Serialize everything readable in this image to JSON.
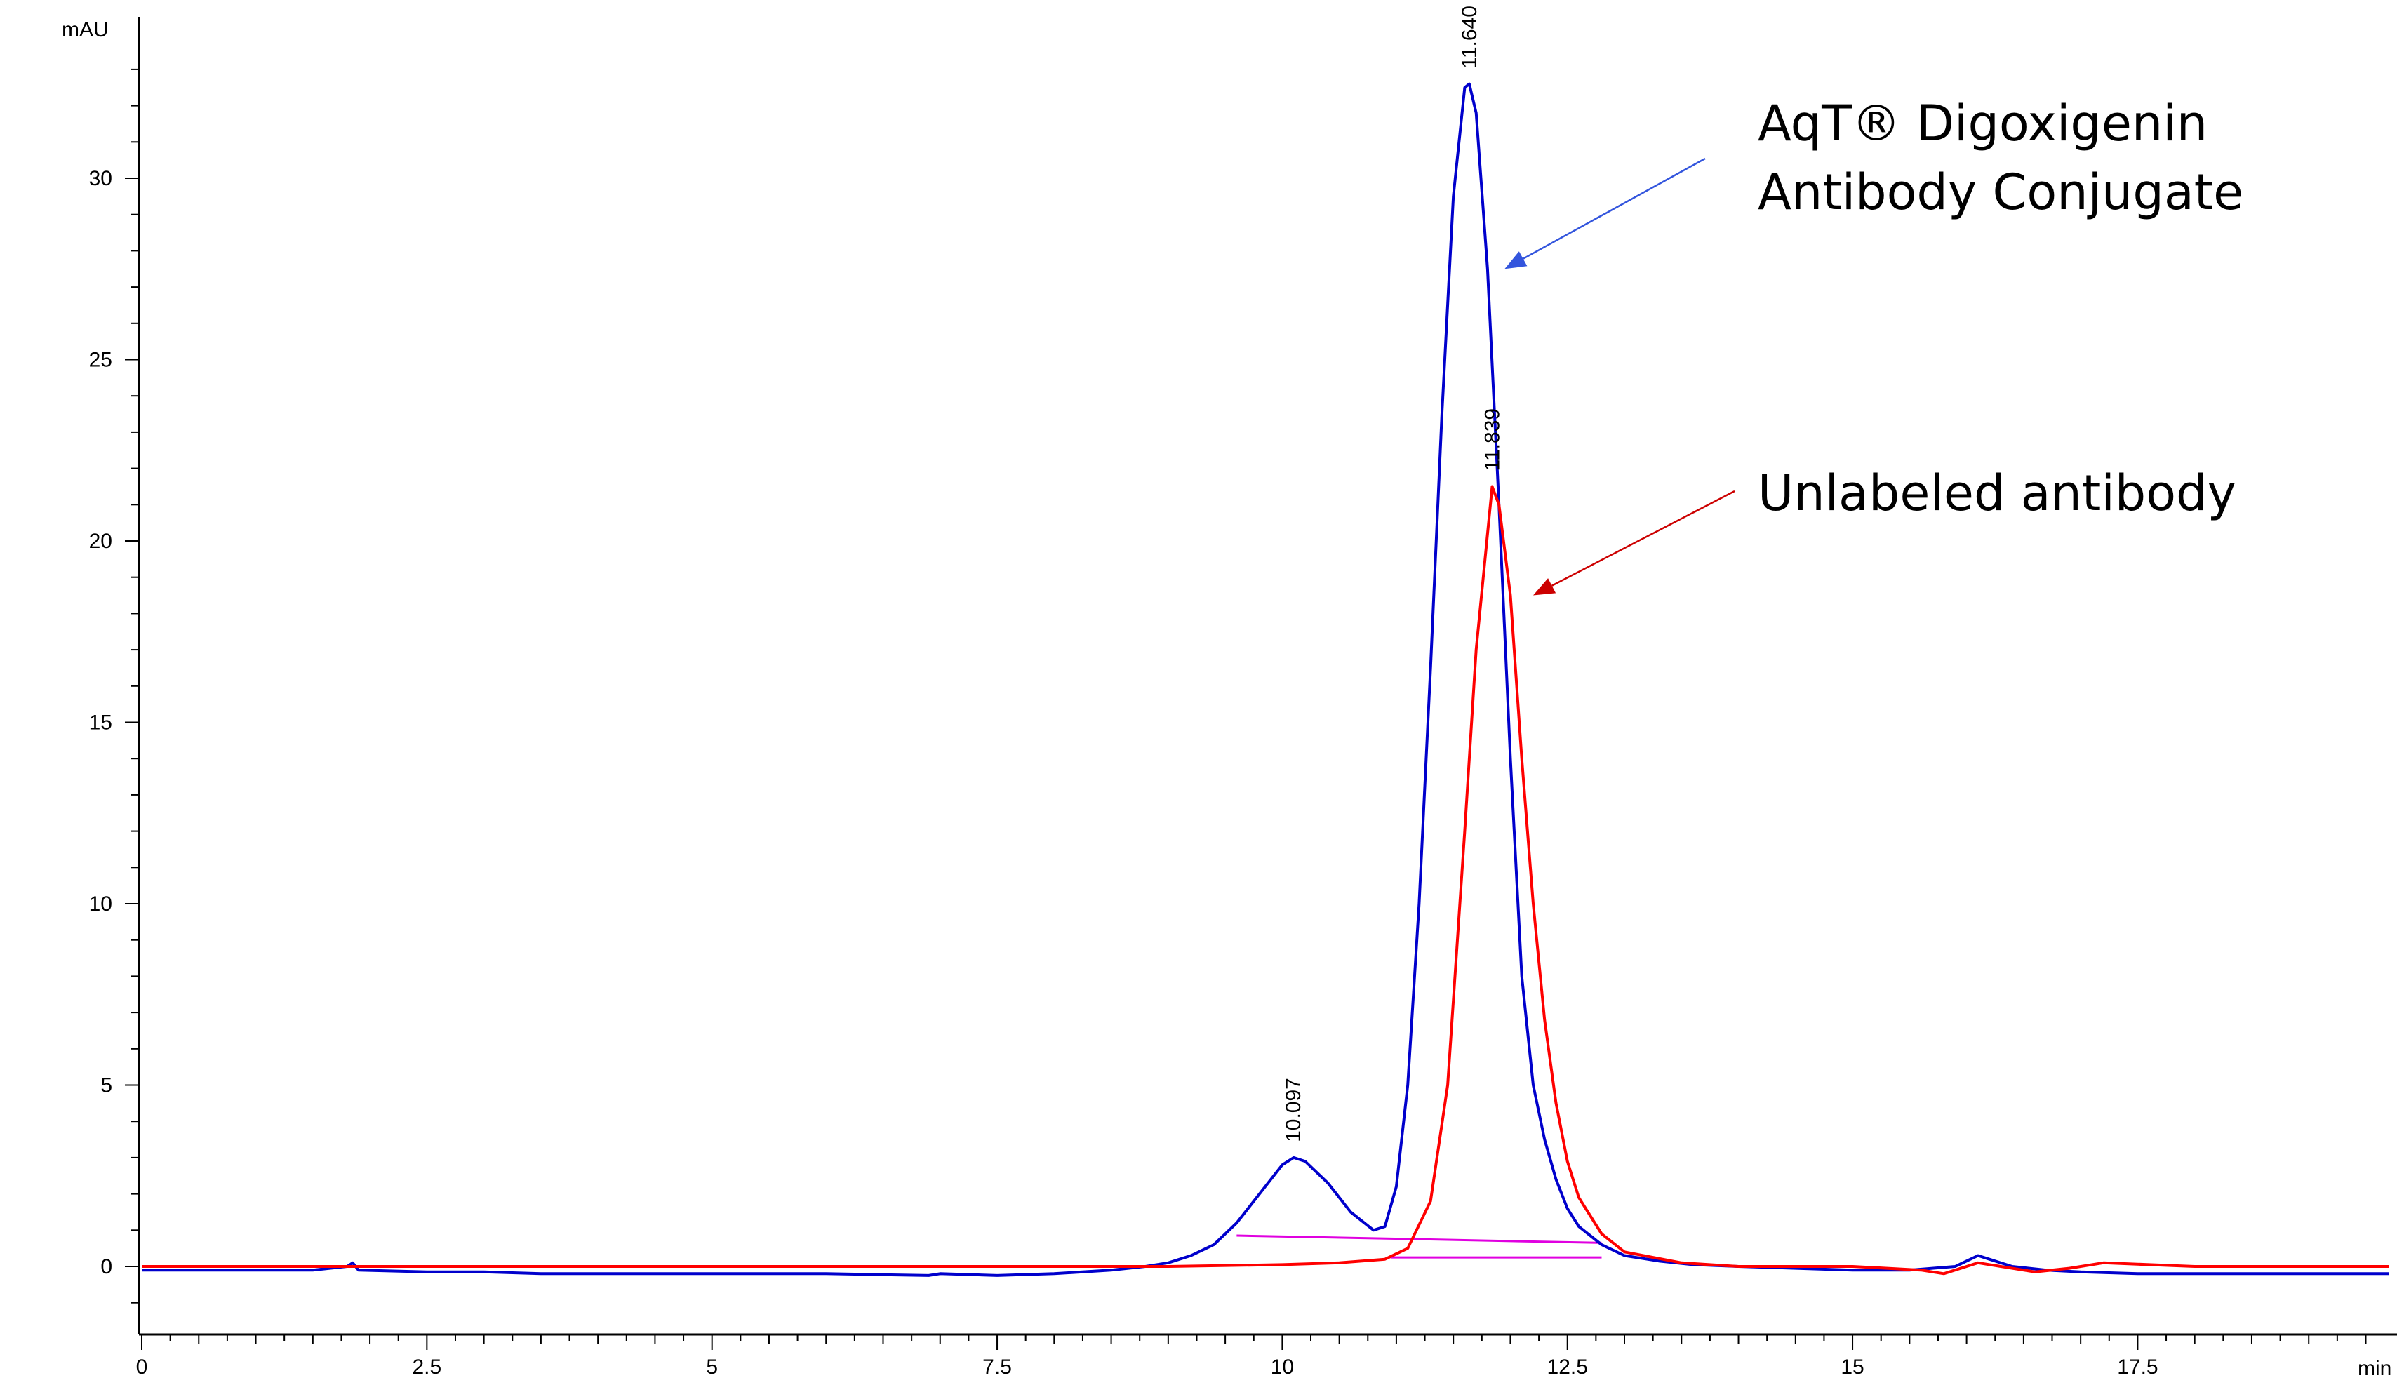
{
  "chart_data": {
    "type": "line",
    "title": "",
    "xlabel": "",
    "ylabel": "",
    "x_unit": "min",
    "y_unit": "mAU",
    "xlim": [
      0,
      19.7
    ],
    "ylim": [
      -2,
      34
    ],
    "x_ticks": [
      {
        "value": 0,
        "label": "0"
      },
      {
        "value": 2.5,
        "label": "2.5"
      },
      {
        "value": 5,
        "label": "5"
      },
      {
        "value": 7.5,
        "label": "7.5"
      },
      {
        "value": 10,
        "label": "10"
      },
      {
        "value": 12.5,
        "label": "12.5"
      },
      {
        "value": 15,
        "label": "15"
      },
      {
        "value": 17.5,
        "label": "17.5"
      }
    ],
    "y_ticks": [
      {
        "value": 0,
        "label": "0"
      },
      {
        "value": 5,
        "label": "5"
      },
      {
        "value": 10,
        "label": "10"
      },
      {
        "value": 15,
        "label": "15"
      },
      {
        "value": 20,
        "label": "20"
      },
      {
        "value": 25,
        "label": "25"
      },
      {
        "value": 30,
        "label": "30"
      }
    ],
    "grid": false,
    "legend": "none",
    "series": [
      {
        "color": "#0000cc",
        "x": [
          0,
          0.5,
          1.0,
          1.5,
          1.8,
          1.85,
          1.9,
          2.5,
          3.0,
          3.5,
          4.0,
          5.0,
          6.0,
          6.9,
          7.0,
          7.5,
          8.0,
          8.5,
          8.8,
          9.0,
          9.2,
          9.4,
          9.6,
          9.8,
          10.0,
          10.1,
          10.2,
          10.4,
          10.6,
          10.8,
          10.9,
          11.0,
          11.1,
          11.2,
          11.3,
          11.4,
          11.5,
          11.6,
          11.64,
          11.7,
          11.8,
          11.9,
          12.0,
          12.1,
          12.2,
          12.3,
          12.4,
          12.5,
          12.6,
          12.8,
          13.0,
          13.3,
          13.6,
          14.0,
          14.5,
          15.0,
          15.5,
          15.9,
          16.1,
          16.2,
          16.4,
          16.7,
          17.0,
          17.5,
          18.0,
          19.0,
          19.7
        ],
        "y": [
          -0.1,
          -0.1,
          -0.1,
          -0.1,
          0.0,
          0.1,
          -0.1,
          -0.15,
          -0.15,
          -0.2,
          -0.2,
          -0.2,
          -0.2,
          -0.25,
          -0.2,
          -0.25,
          -0.2,
          -0.1,
          0.0,
          0.1,
          0.3,
          0.6,
          1.2,
          2.0,
          2.8,
          3.0,
          2.9,
          2.3,
          1.5,
          1.0,
          1.1,
          2.2,
          5.0,
          10.0,
          16.5,
          23.5,
          29.5,
          32.5,
          32.6,
          31.8,
          27.5,
          21.0,
          14.0,
          8.0,
          5.0,
          3.5,
          2.4,
          1.6,
          1.1,
          0.6,
          0.3,
          0.15,
          0.05,
          0.0,
          -0.05,
          -0.1,
          -0.1,
          0.0,
          0.3,
          0.2,
          0.0,
          -0.1,
          -0.15,
          -0.2,
          -0.2,
          -0.2,
          -0.2
        ]
      },
      {
        "color": "#ff0000",
        "x": [
          0,
          2.0,
          5.0,
          8.0,
          9.0,
          10.0,
          10.5,
          10.9,
          11.1,
          11.3,
          11.45,
          11.6,
          11.7,
          11.84,
          11.9,
          12.0,
          12.1,
          12.2,
          12.3,
          12.4,
          12.5,
          12.6,
          12.8,
          13.0,
          13.5,
          14.0,
          15.0,
          15.6,
          15.8,
          16.0,
          16.1,
          16.3,
          16.6,
          16.9,
          17.2,
          18.0,
          19.0,
          19.7
        ],
        "y": [
          0.0,
          0.0,
          0.0,
          0.0,
          0.0,
          0.05,
          0.1,
          0.2,
          0.5,
          1.8,
          5.0,
          12.0,
          17.0,
          21.5,
          21.0,
          18.5,
          14.0,
          10.0,
          6.8,
          4.5,
          2.9,
          1.9,
          0.9,
          0.4,
          0.1,
          0.0,
          0.0,
          -0.1,
          -0.2,
          0.0,
          0.1,
          0.0,
          -0.15,
          -0.05,
          0.1,
          0.0,
          0.0,
          0.0
        ]
      }
    ],
    "baselines": [
      {
        "color": "#e000e0",
        "x": [
          9.6,
          12.8
        ],
        "y": [
          0.85,
          0.65
        ]
      },
      {
        "color": "#e000e0",
        "x": [
          10.95,
          12.8
        ],
        "y": [
          0.25,
          0.25
        ]
      }
    ],
    "peak_labels": [
      {
        "x": 10.097,
        "y": 3.0,
        "label": "10.097"
      },
      {
        "x": 11.64,
        "y": 32.6,
        "label": "11.640"
      },
      {
        "x": 11.839,
        "y": 21.5,
        "label": "11.839"
      }
    ],
    "annotations": [
      {
        "lines": [
          "AqT® Digoxigenin",
          "Antibody Conjugate"
        ],
        "color": "#3355dd",
        "arrow_tip": {
          "x": 11.95,
          "y": 27.5
        }
      },
      {
        "lines": [
          "Unlabeled antibody"
        ],
        "color": "#cc0000",
        "arrow_tip": {
          "x": 12.2,
          "y": 18.5
        }
      }
    ]
  }
}
